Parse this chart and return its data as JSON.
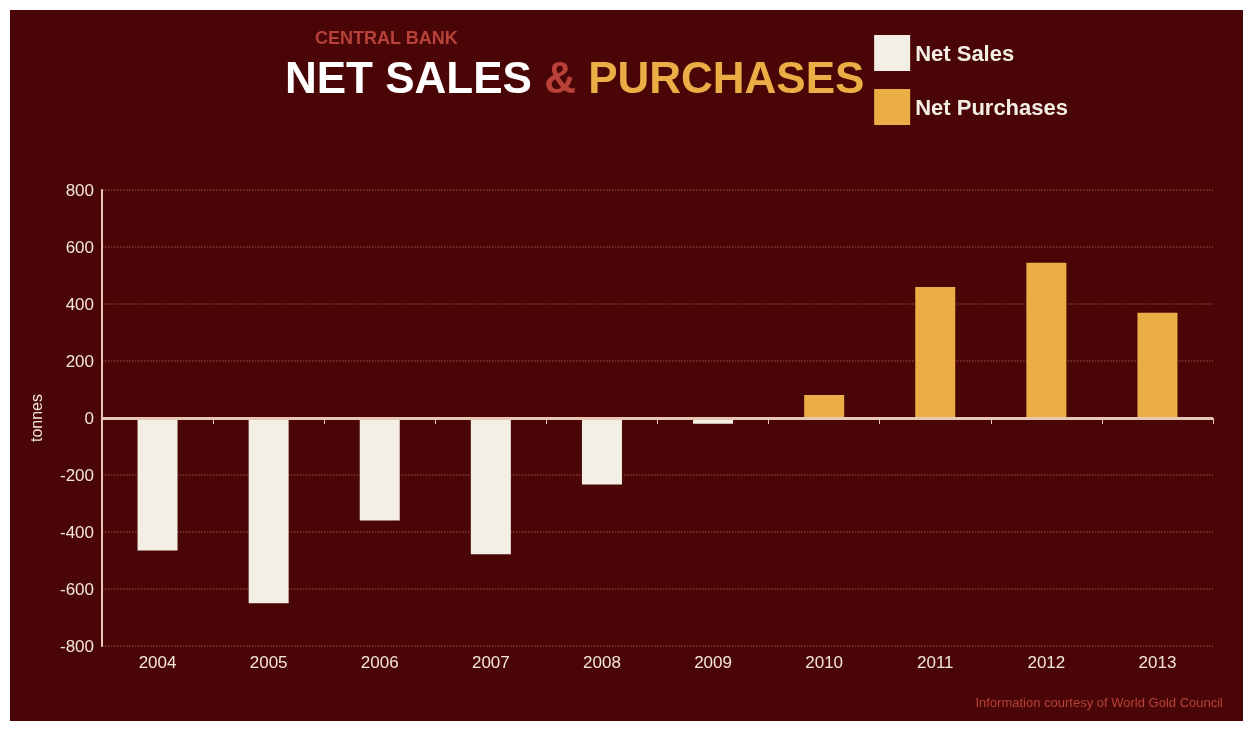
{
  "chart_data": {
    "type": "bar",
    "title": "NET SALES & PURCHASES",
    "subtitle": "CENTRAL BANK",
    "ylabel": "tonnes",
    "categories": [
      "2004",
      "2005",
      "2006",
      "2007",
      "2008",
      "2009",
      "2010",
      "2011",
      "2012",
      "2013"
    ],
    "series": [
      {
        "name": "Net Sales",
        "color": "#f3efe4",
        "values": [
          -465,
          -650,
          -360,
          -478,
          -233,
          -20,
          null,
          null,
          null,
          null
        ]
      },
      {
        "name": "Net Purchases",
        "color": "#eaae45",
        "values": [
          null,
          null,
          null,
          null,
          null,
          null,
          81,
          460,
          545,
          369
        ]
      }
    ],
    "ref_lines": [
      {
        "axis": "y",
        "value": 0,
        "color": "#e8c6b4"
      }
    ],
    "ylim": [
      -800,
      800
    ],
    "yticks": [
      -800,
      -600,
      -400,
      -200,
      0,
      200,
      400,
      600,
      800
    ],
    "grid": "y",
    "legend": "top right",
    "annotations": [
      "Information courtesy of World Gold Council"
    ]
  }
}
